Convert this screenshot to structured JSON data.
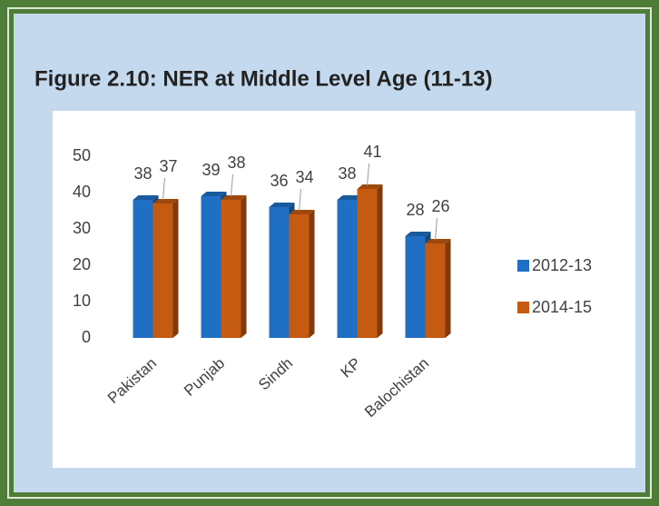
{
  "chart_data": {
    "type": "bar",
    "title": "Figure 2.10: NER at Middle Level Age (11-13)",
    "categories": [
      "Pakistan",
      "Punjab",
      "Sindh",
      "KP",
      "Balochistan"
    ],
    "series": [
      {
        "name": "2012-13",
        "color": "#1f6fc5",
        "values": [
          38,
          39,
          36,
          38,
          28
        ]
      },
      {
        "name": "2014-15",
        "color": "#c55a11",
        "values": [
          37,
          38,
          34,
          41,
          26
        ]
      }
    ],
    "ylim": [
      0,
      50
    ],
    "yticks": [
      0,
      10,
      20,
      30,
      40,
      50
    ],
    "grid": false,
    "legend": "right"
  }
}
